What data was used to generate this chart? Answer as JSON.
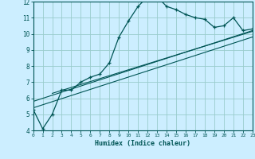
{
  "xlabel": "Humidex (Indice chaleur)",
  "bg_color": "#cceeff",
  "line_color": "#005555",
  "grid_color": "#99cccc",
  "xlim": [
    0,
    23
  ],
  "ylim": [
    4,
    12
  ],
  "xticks": [
    0,
    1,
    2,
    3,
    4,
    5,
    6,
    7,
    8,
    9,
    10,
    11,
    12,
    13,
    14,
    15,
    16,
    17,
    18,
    19,
    20,
    21,
    22,
    23
  ],
  "yticks": [
    4,
    5,
    6,
    7,
    8,
    9,
    10,
    11,
    12
  ],
  "main_x": [
    0,
    1,
    2,
    3,
    4,
    5,
    6,
    7,
    8,
    9,
    10,
    11,
    12,
    13,
    14,
    15,
    16,
    17,
    18,
    19,
    20,
    21,
    22,
    23
  ],
  "main_y": [
    5.3,
    4.1,
    5.0,
    6.5,
    6.5,
    7.0,
    7.3,
    7.5,
    8.2,
    9.8,
    10.8,
    11.7,
    12.3,
    12.3,
    11.7,
    11.5,
    11.2,
    11.0,
    10.9,
    10.4,
    10.5,
    11.0,
    10.2,
    10.3
  ],
  "line1_x": [
    0,
    23
  ],
  "line1_y": [
    5.8,
    10.2
  ],
  "line2_x": [
    0,
    23
  ],
  "line2_y": [
    5.4,
    9.8
  ],
  "line3_x": [
    2,
    23
  ],
  "line3_y": [
    6.3,
    10.15
  ]
}
